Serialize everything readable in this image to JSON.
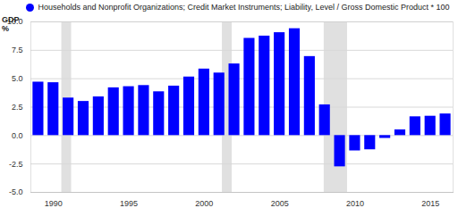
{
  "chart_data": {
    "type": "bar",
    "x": [
      1989,
      1990,
      1991,
      1992,
      1993,
      1994,
      1995,
      1996,
      1997,
      1998,
      1999,
      2000,
      2001,
      2002,
      2003,
      2004,
      2005,
      2006,
      2007,
      2008,
      2009,
      2010,
      2011,
      2012,
      2013,
      2014,
      2015,
      2016
    ],
    "series": [
      {
        "name": "Households and Nonprofit Organizations; Credit Market Instruments; Liability, Level / Gross Domestic Product * 100",
        "color": "#0000ff",
        "values": [
          4.7,
          4.65,
          3.3,
          3.0,
          3.4,
          4.2,
          4.3,
          4.4,
          3.85,
          4.35,
          5.15,
          5.85,
          5.5,
          6.3,
          8.55,
          8.75,
          9.05,
          9.4,
          6.95,
          2.7,
          -2.75,
          -1.35,
          -1.25,
          -0.25,
          0.5,
          1.65,
          1.7,
          1.9
        ]
      }
    ],
    "y_label": "GDP %",
    "xlim": [
      1988.5,
      2016.5
    ],
    "xticks": [
      1990,
      1995,
      2000,
      2005,
      2010,
      2015
    ],
    "ylim": [
      -5,
      10
    ],
    "yticks": [
      {
        "value": -5,
        "label": "-5.0"
      },
      {
        "value": -2.5,
        "label": "-2.5"
      },
      {
        "value": 0,
        "label": "0.0"
      },
      {
        "value": 2.5,
        "label": "2.5"
      },
      {
        "value": 5,
        "label": "5.0"
      },
      {
        "value": 7.5,
        "label": "7.5"
      },
      {
        "value": 10,
        "label": "10.0"
      }
    ],
    "grid": true,
    "legend": "top",
    "shaded_ranges": [
      [
        1990.55,
        1991.2
      ],
      [
        2001.2,
        2001.85
      ],
      [
        2007.95,
        2009.5
      ]
    ]
  }
}
